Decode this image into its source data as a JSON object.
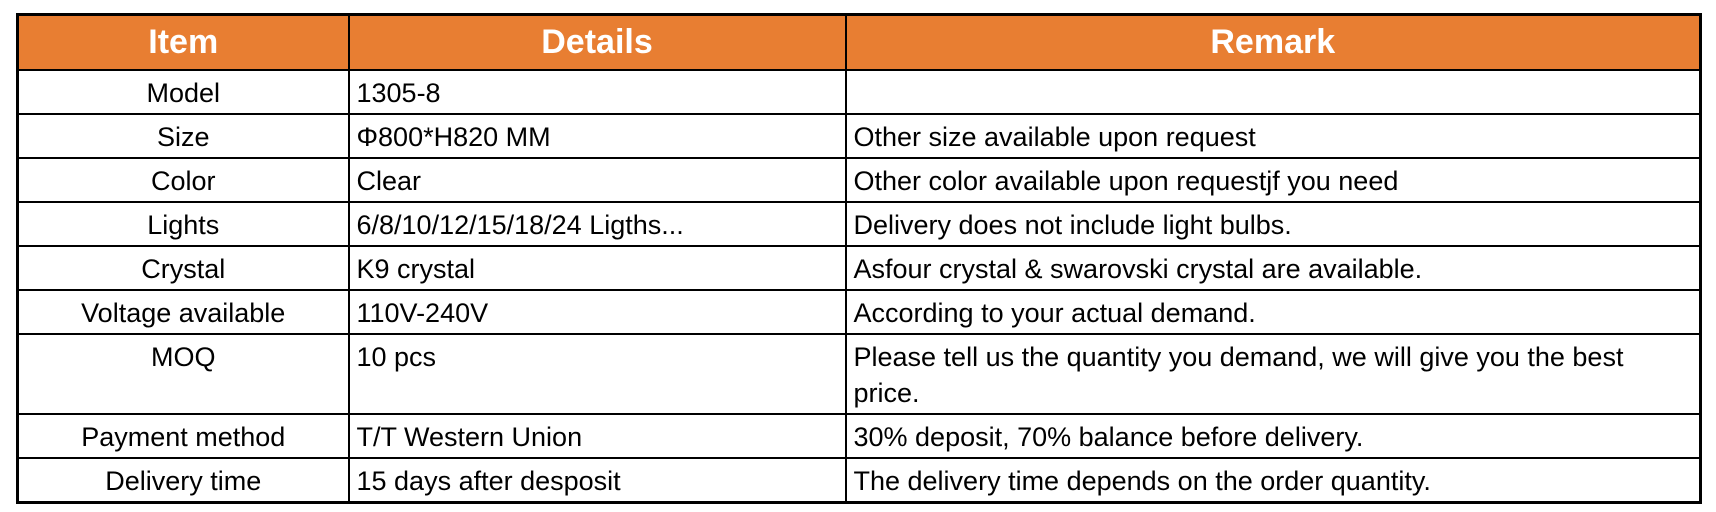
{
  "colors": {
    "header_bg": "#E87E32",
    "header_text": "#FFFFFF",
    "border": "#000000",
    "body_text": "#000000"
  },
  "table": {
    "headers": {
      "item": "Item",
      "details": "Details",
      "remark": "Remark"
    },
    "rows": [
      {
        "item": "Model",
        "details": "1305-8",
        "remark": ""
      },
      {
        "item": "Size",
        "details": "Φ800*H820 MM",
        "remark": "Other size available upon request"
      },
      {
        "item": "Color",
        "details": "Clear",
        "remark": "Other color available upon requestjf you need"
      },
      {
        "item": "Lights",
        "details": "6/8/10/12/15/18/24 Ligths...",
        "remark": "Delivery does not include light bulbs."
      },
      {
        "item": "Crystal",
        "details": "K9 crystal",
        "remark": "Asfour crystal & swarovski crystal are available."
      },
      {
        "item": "Voltage available",
        "details": "110V-240V",
        "remark": "According to your actual demand."
      },
      {
        "item": "MOQ",
        "details": "10 pcs",
        "remark": "Please tell us the quantity you demand, we will give you the best price."
      },
      {
        "item": "Payment method",
        "details": "T/T Western Union",
        "remark": "30% deposit, 70% balance before delivery."
      },
      {
        "item": "Delivery time",
        "details": "15 days after desposit",
        "remark": "The delivery time depends on the order quantity."
      }
    ]
  }
}
